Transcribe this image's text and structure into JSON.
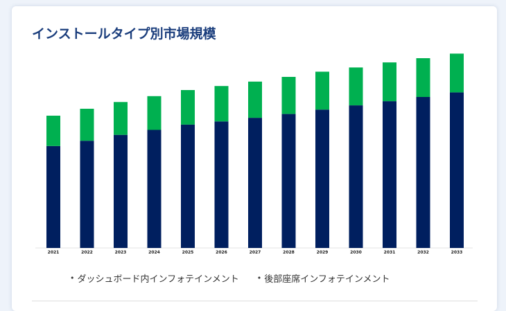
{
  "colors": {
    "dashboard": "#001f5f",
    "rear_seat": "#00b050",
    "title": "#1a3d7c"
  },
  "chart_data": {
    "type": "bar",
    "stacked": true,
    "title": "インストールタイプ別市場規模",
    "categories": [
      "2021",
      "2022",
      "2023",
      "2024",
      "2025",
      "2026",
      "2027",
      "2028",
      "2029",
      "2030",
      "2031",
      "2032",
      "2033"
    ],
    "series": [
      {
        "name": "ダッシュボード内インフォテインメント",
        "values": [
          60.5,
          63.6,
          67.1,
          70.1,
          73.2,
          75.1,
          77.2,
          79.5,
          82.1,
          84.6,
          87.1,
          89.6,
          92.3
        ]
      },
      {
        "name": "後部座席インフォテインメント",
        "values": [
          18.0,
          19.0,
          19.5,
          20.0,
          20.5,
          21.0,
          21.5,
          22.0,
          22.5,
          22.5,
          23.0,
          23.0,
          23.0
        ]
      }
    ],
    "ylim": [
      0,
      120
    ],
    "grid": false,
    "legend_position": "bottom"
  }
}
